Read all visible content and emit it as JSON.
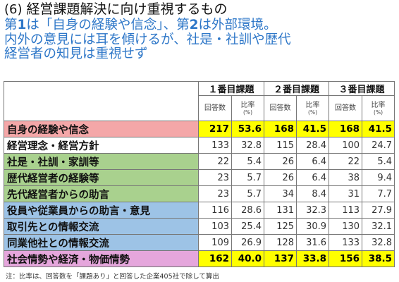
{
  "title": {
    "number": "(6)",
    "text": "経営課題解決に向け重視するもの"
  },
  "headline": {
    "line1_pre": "第",
    "line1_n1": "1",
    "line1_mid": "は「自身の経験や信念」、第",
    "line1_n2": "2",
    "line1_post": "は外部環境。",
    "line2": "内外の意見には耳を傾けるが、社是・社訓や歴代",
    "line3": "経営者の知見は重視せず"
  },
  "table": {
    "groups": [
      "１番目課題",
      "２番目課題",
      "３番目課題"
    ],
    "subheaders": {
      "count": "回答数",
      "ratio": "比率",
      "ratio_unit": "(%)"
    },
    "rows": [
      {
        "label": "自身の経験や信念",
        "color": "#f4a7a8",
        "highlight": true,
        "values": [
          "217",
          "53.6",
          "168",
          "41.5",
          "168",
          "41.5"
        ]
      },
      {
        "label": "経営理念・経営方針",
        "color": "#ffffff",
        "highlight": false,
        "values": [
          "133",
          "32.8",
          "115",
          "28.4",
          "100",
          "24.7"
        ]
      },
      {
        "label": "社是・社訓・家訓等",
        "color": "#a9d18e",
        "highlight": false,
        "values": [
          "22",
          "5.4",
          "26",
          "6.4",
          "22",
          "5.4"
        ]
      },
      {
        "label": "歴代経営者の経験等",
        "color": "#a9d18e",
        "highlight": false,
        "values": [
          "23",
          "5.7",
          "26",
          "6.4",
          "38",
          "9.4"
        ]
      },
      {
        "label": "先代経営者からの助言",
        "color": "#a9d18e",
        "highlight": false,
        "values": [
          "23",
          "5.7",
          "34",
          "8.4",
          "31",
          "7.7"
        ]
      },
      {
        "label": "役員や従業員からの助言・意見",
        "color": "#9dc3e6",
        "highlight": false,
        "values": [
          "116",
          "28.6",
          "131",
          "32.3",
          "113",
          "27.9"
        ]
      },
      {
        "label": "取引先との情報交流",
        "color": "#9dc3e6",
        "highlight": false,
        "values": [
          "103",
          "25.4",
          "125",
          "30.9",
          "130",
          "32.1"
        ]
      },
      {
        "label": "同業他社との情報交流",
        "color": "#9dc3e6",
        "highlight": false,
        "values": [
          "109",
          "26.9",
          "128",
          "31.6",
          "133",
          "32.8"
        ]
      },
      {
        "label": "社会情勢や経済・物価情勢",
        "color": "#e5a6dc",
        "highlight": true,
        "values": [
          "162",
          "40.0",
          "137",
          "33.8",
          "156",
          "38.5"
        ]
      }
    ]
  },
  "footnote": "注：比率は、回答数を「課題あり」と回答した企業405社で除して算出"
}
